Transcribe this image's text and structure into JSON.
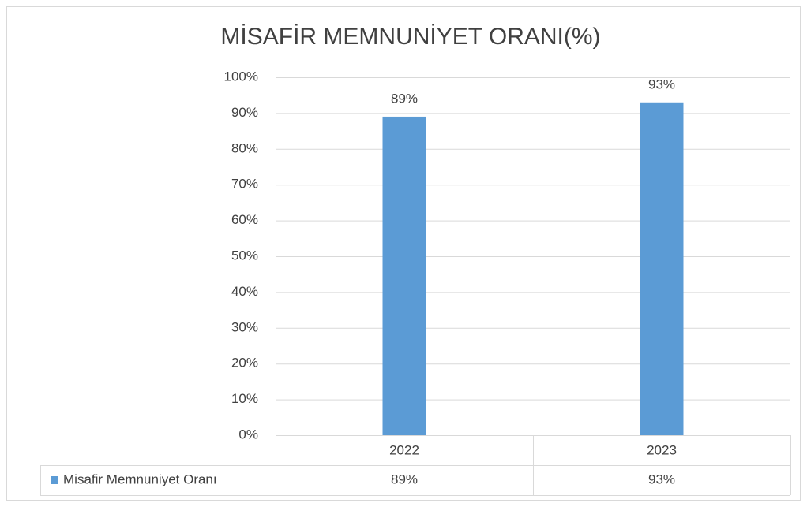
{
  "chart_data": {
    "type": "bar",
    "title": "MİSAFİR MEMNUNİYET ORANI(%)",
    "categories": [
      "2022",
      "2023"
    ],
    "series": [
      {
        "name": "Misafir Memnuniyet Oranı",
        "color": "#5b9bd5",
        "values": [
          89,
          93
        ],
        "value_labels": [
          "89%",
          "93%"
        ]
      }
    ],
    "ylim": [
      0,
      100
    ],
    "yticks": [
      {
        "value": 0,
        "label": "0%"
      },
      {
        "value": 10,
        "label": "10%"
      },
      {
        "value": 20,
        "label": "20%"
      },
      {
        "value": 30,
        "label": "30%"
      },
      {
        "value": 40,
        "label": "40%"
      },
      {
        "value": 50,
        "label": "50%"
      },
      {
        "value": 60,
        "label": "60%"
      },
      {
        "value": 70,
        "label": "70%"
      },
      {
        "value": 80,
        "label": "80%"
      },
      {
        "value": 90,
        "label": "90%"
      },
      {
        "value": 100,
        "label": "100%"
      }
    ],
    "grid": true,
    "data_table": true
  }
}
